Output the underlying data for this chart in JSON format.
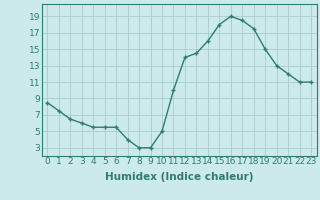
{
  "x": [
    0,
    1,
    2,
    3,
    4,
    5,
    6,
    7,
    8,
    9,
    10,
    11,
    12,
    13,
    14,
    15,
    16,
    17,
    18,
    19,
    20,
    21,
    22,
    23
  ],
  "y": [
    8.5,
    7.5,
    6.5,
    6.0,
    5.5,
    5.5,
    5.5,
    4.0,
    3.0,
    3.0,
    5.0,
    10.0,
    14.0,
    14.5,
    16.0,
    18.0,
    19.0,
    18.5,
    17.5,
    15.0,
    13.0,
    12.0,
    11.0,
    11.0
  ],
  "line_color": "#2e7d6e",
  "marker": "+",
  "bg_color": "#cceaea",
  "grid_color": "#aacccc",
  "xlabel": "Humidex (Indice chaleur)",
  "ylabel_ticks": [
    3,
    5,
    7,
    9,
    11,
    13,
    15,
    17,
    19
  ],
  "xtick_labels": [
    "0",
    "1",
    "2",
    "3",
    "4",
    "5",
    "6",
    "7",
    "8",
    "9",
    "10",
    "11",
    "12",
    "13",
    "14",
    "15",
    "16",
    "17",
    "18",
    "19",
    "20",
    "21",
    "22",
    "23"
  ],
  "ylim": [
    2,
    20.5
  ],
  "xlim": [
    -0.5,
    23.5
  ],
  "xlabel_fontsize": 7.5,
  "tick_fontsize": 6.5,
  "label_color": "#2e7d6e"
}
